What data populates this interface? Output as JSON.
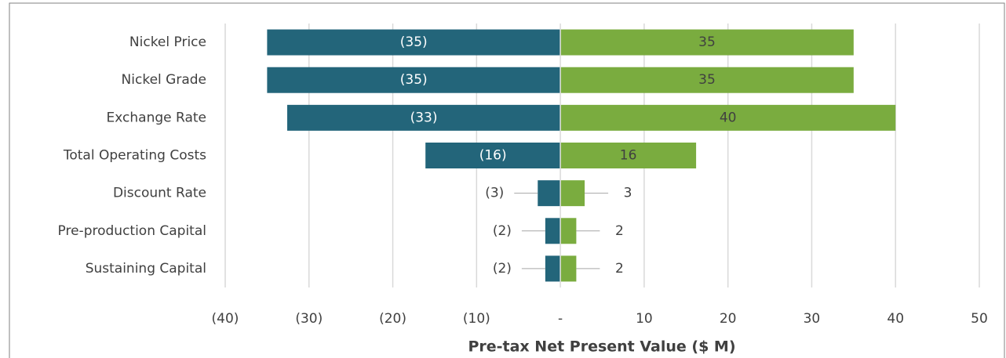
{
  "chart_data": {
    "type": "tornado",
    "x_label": "Pre-tax Net Present Value ($ M)",
    "categories": [
      "Nickel Price",
      "Nickel Grade",
      "Exchange Rate",
      "Total Operating Costs",
      "Discount Rate",
      "Pre-production Capital",
      "Sustaining Capital"
    ],
    "series": [
      {
        "color": "#23657a",
        "values": [
          -35,
          -35,
          -32.6,
          -16.1,
          -2.7,
          -1.8,
          -1.8
        ],
        "value_labels": [
          "(35)",
          "(35)",
          "(33)",
          "(16)",
          "(3)",
          "(2)",
          "(2)"
        ]
      },
      {
        "color": "#7aac3f",
        "values": [
          35,
          35,
          40,
          16.2,
          2.9,
          1.9,
          1.9
        ],
        "value_labels": [
          "35",
          "35",
          "40",
          "16",
          "3",
          "2",
          "2"
        ]
      }
    ],
    "xlim": [
      -40,
      50
    ],
    "xticks": [
      {
        "value": -40,
        "label": "(40)"
      },
      {
        "value": -30,
        "label": "(30)"
      },
      {
        "value": -20,
        "label": "(20)"
      },
      {
        "value": -10,
        "label": "(10)"
      },
      {
        "value": 0,
        "label": "-"
      },
      10,
      20,
      30,
      40,
      50
    ],
    "grid": true
  }
}
